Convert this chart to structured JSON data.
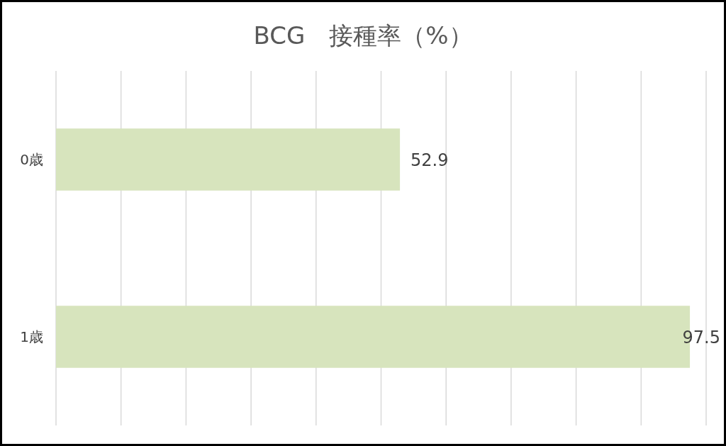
{
  "chart_data": {
    "type": "bar",
    "orientation": "horizontal",
    "title": "BCG　接種率（%）",
    "categories": [
      "0歳",
      "1歳"
    ],
    "values": [
      52.9,
      97.5
    ],
    "color": "#d7e4bd",
    "xlim": [
      0,
      100
    ],
    "xticks": [
      {
        "value": 0,
        "label": null
      },
      {
        "value": 10,
        "label": null
      },
      {
        "value": 20,
        "label": null
      },
      {
        "value": 30,
        "label": null
      },
      {
        "value": 40,
        "label": null
      },
      {
        "value": 50,
        "label": null
      },
      {
        "value": 60,
        "label": null
      },
      {
        "value": 70,
        "label": null
      },
      {
        "value": 80,
        "label": null
      },
      {
        "value": 90,
        "label": null
      },
      {
        "value": 100,
        "label": null
      }
    ],
    "grid": "x",
    "tick_labels": "y",
    "data_labels": true
  }
}
